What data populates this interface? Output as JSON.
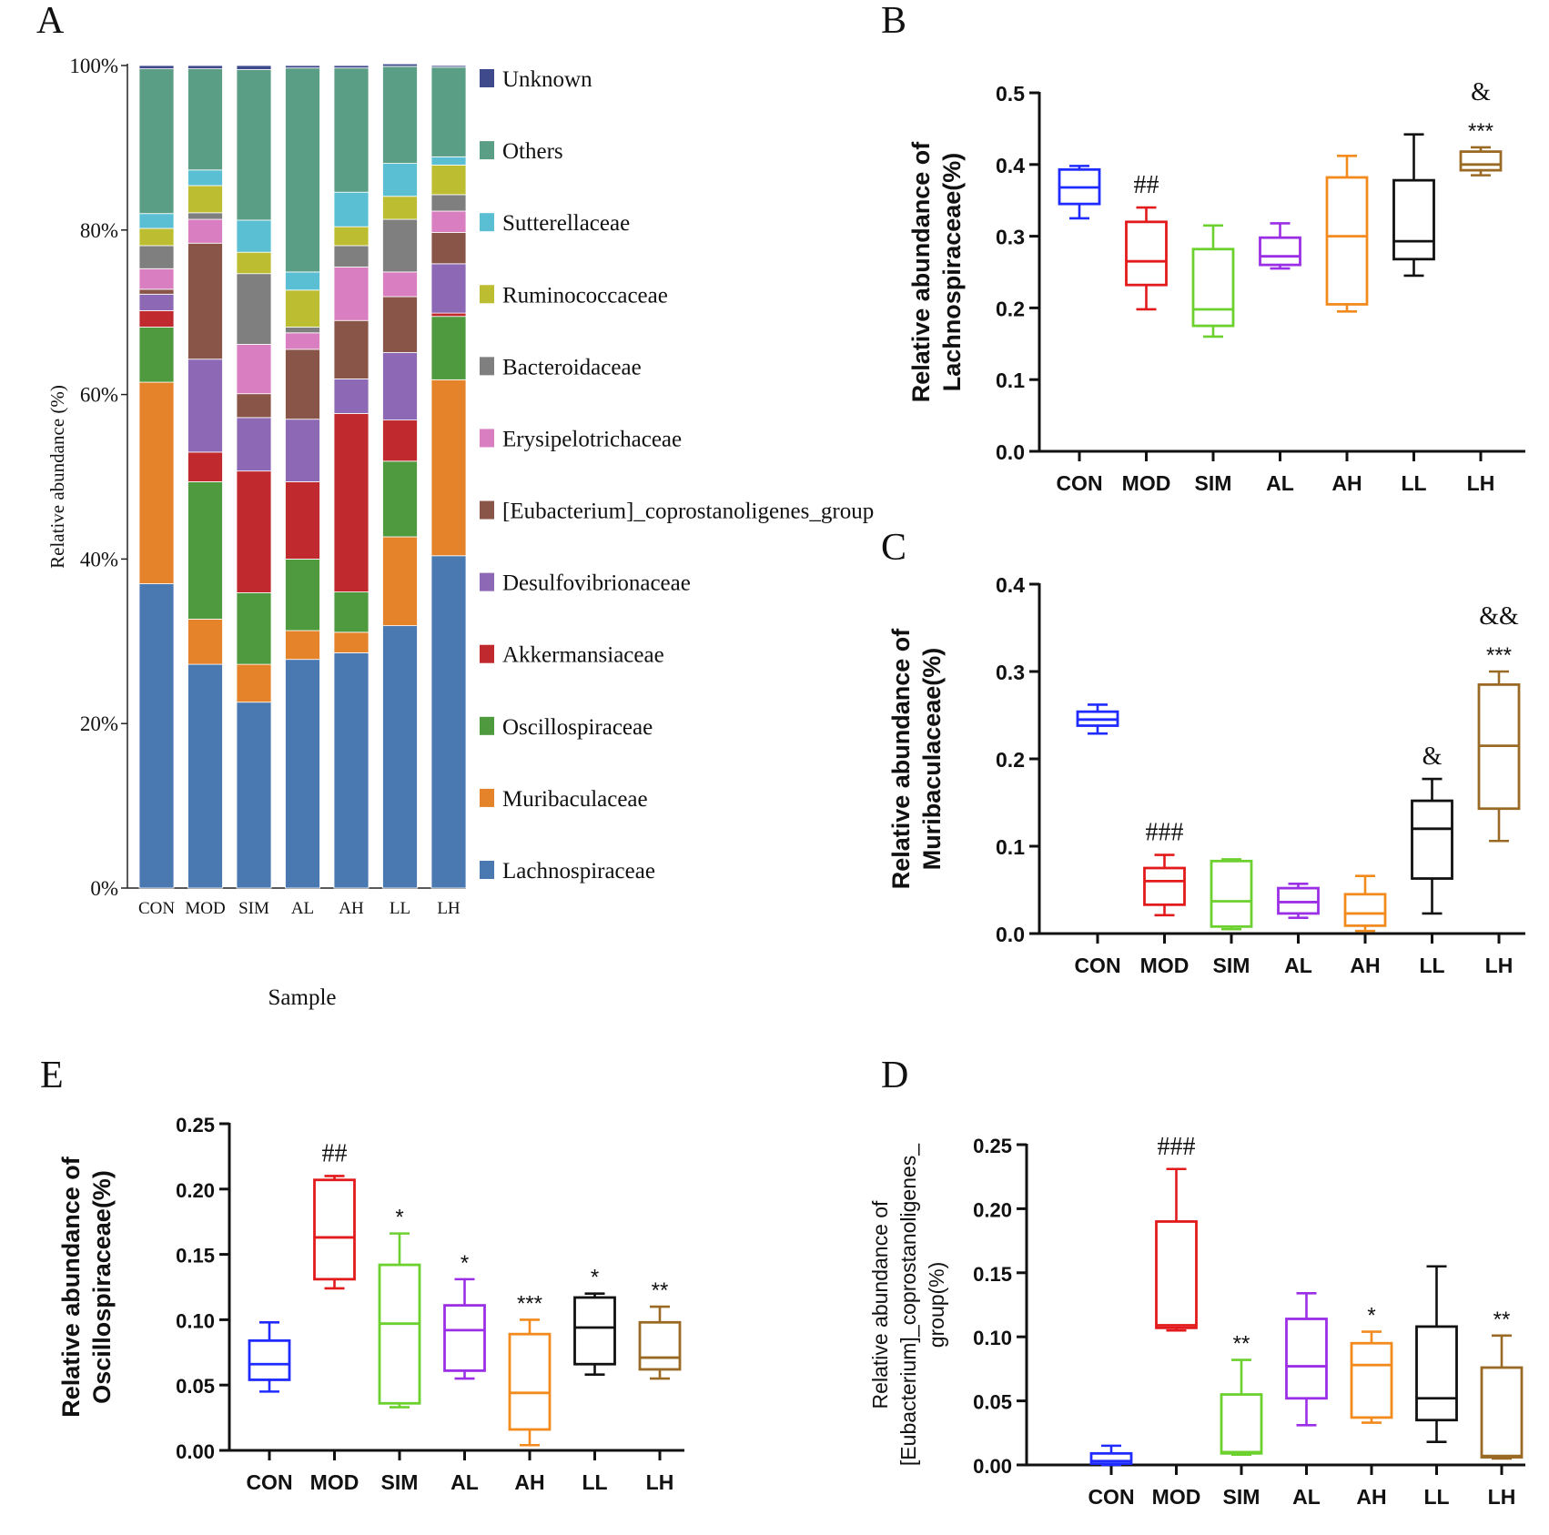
{
  "chart_data": [
    {
      "panel": "A",
      "type": "bar",
      "stacked": true,
      "title": "",
      "xlabel": "Sample",
      "ylabel": "Relative abundance (%)",
      "categories": [
        "CON",
        "MOD",
        "SIM",
        "AL",
        "AH",
        "LL",
        "LH"
      ],
      "yticks": [
        "0%",
        "20%",
        "40%",
        "60%",
        "80%",
        "100%"
      ],
      "ylim": [
        0,
        100
      ],
      "legend_position": "right",
      "series": [
        {
          "name": "Lachnospiraceae",
          "color": "#4a78b0",
          "values": [
            37.0,
            27.2,
            22.6,
            27.8,
            28.6,
            31.9,
            40.4
          ]
        },
        {
          "name": "Muribaculaceae",
          "color": "#e5832b",
          "values": [
            24.5,
            5.5,
            4.6,
            3.5,
            2.5,
            10.8,
            21.4
          ]
        },
        {
          "name": "Oscillospiraceae",
          "color": "#4f9a3f",
          "values": [
            6.7,
            16.7,
            8.7,
            8.7,
            4.9,
            9.2,
            7.7
          ]
        },
        {
          "name": "Akkermansiaceae",
          "color": "#c0292d",
          "values": [
            2.0,
            3.6,
            14.8,
            9.4,
            21.7,
            5.0,
            0.4
          ]
        },
        {
          "name": "Desulfovibrionaceae",
          "color": "#8d68b5",
          "values": [
            2.0,
            11.3,
            6.5,
            7.6,
            4.2,
            8.2,
            6.0
          ]
        },
        {
          "name": "[Eubacterium]_coprostanoligenes_group",
          "color": "#8a5549",
          "values": [
            0.6,
            14.1,
            2.9,
            8.5,
            7.1,
            6.8,
            3.8
          ]
        },
        {
          "name": "Erysipelotrichaceae",
          "color": "#d97ec0",
          "values": [
            2.5,
            2.9,
            6.0,
            2.0,
            6.5,
            3.0,
            2.6
          ]
        },
        {
          "name": "Bacteroidaceae",
          "color": "#7f7f7f",
          "values": [
            2.8,
            0.8,
            8.6,
            0.7,
            2.6,
            6.4,
            2.0
          ]
        },
        {
          "name": "Ruminococcaceae",
          "color": "#bcbd30",
          "values": [
            2.1,
            3.3,
            2.6,
            4.5,
            2.3,
            2.8,
            3.6
          ]
        },
        {
          "name": "Sutterellaceae",
          "color": "#5bbfd4",
          "values": [
            1.8,
            1.9,
            3.9,
            2.2,
            4.2,
            4.0,
            1.0
          ]
        },
        {
          "name": "Others",
          "color": "#5b9e86",
          "values": [
            17.6,
            12.3,
            18.3,
            24.8,
            15.1,
            11.8,
            10.9
          ]
        },
        {
          "name": "Unknown",
          "color": "#3f4a8c",
          "values": [
            0.4,
            0.4,
            0.5,
            0.3,
            0.3,
            0.3,
            0.2
          ]
        }
      ]
    },
    {
      "panel": "B",
      "type": "box",
      "ylabel_lines": [
        "Relative abundance of",
        "Lachnospiraceae(%)"
      ],
      "ylim": [
        0,
        0.5
      ],
      "yticks": [
        "0.0",
        "0.1",
        "0.2",
        "0.3",
        "0.4",
        "0.5"
      ],
      "categories": [
        "CON",
        "MOD",
        "SIM",
        "AL",
        "AH",
        "LL",
        "LH"
      ],
      "colors": [
        "#1f2bff",
        "#e31a1c",
        "#6cd02e",
        "#9b2fe6",
        "#f28a1e",
        "#111111",
        "#9a6a25"
      ],
      "boxes": [
        {
          "min": 0.325,
          "q1": 0.345,
          "median": 0.368,
          "q3": 0.393,
          "max": 0.398
        },
        {
          "min": 0.198,
          "q1": 0.232,
          "median": 0.265,
          "q3": 0.32,
          "max": 0.34
        },
        {
          "min": 0.16,
          "q1": 0.175,
          "median": 0.198,
          "q3": 0.282,
          "max": 0.315
        },
        {
          "min": 0.255,
          "q1": 0.26,
          "median": 0.272,
          "q3": 0.298,
          "max": 0.318
        },
        {
          "min": 0.195,
          "q1": 0.205,
          "median": 0.3,
          "q3": 0.382,
          "max": 0.412
        },
        {
          "min": 0.245,
          "q1": 0.268,
          "median": 0.293,
          "q3": 0.378,
          "max": 0.442
        },
        {
          "min": 0.385,
          "q1": 0.392,
          "median": 0.4,
          "q3": 0.418,
          "max": 0.424
        }
      ],
      "annotations": [
        {
          "group": 1,
          "lines": [
            "##"
          ]
        },
        {
          "group": 6,
          "lines": [
            "&",
            "***"
          ]
        }
      ]
    },
    {
      "panel": "C",
      "type": "box",
      "ylabel_lines": [
        "Relative abundance of",
        "Muribaculaceae(%)"
      ],
      "ylim": [
        0,
        0.4
      ],
      "yticks": [
        "0.0",
        "0.1",
        "0.2",
        "0.3",
        "0.4"
      ],
      "categories": [
        "CON",
        "MOD",
        "SIM",
        "AL",
        "AH",
        "LL",
        "LH"
      ],
      "colors": [
        "#1f2bff",
        "#e31a1c",
        "#6cd02e",
        "#9b2fe6",
        "#f28a1e",
        "#111111",
        "#9a6a25"
      ],
      "boxes": [
        {
          "min": 0.229,
          "q1": 0.238,
          "median": 0.245,
          "q3": 0.254,
          "max": 0.262
        },
        {
          "min": 0.021,
          "q1": 0.033,
          "median": 0.06,
          "q3": 0.075,
          "max": 0.09
        },
        {
          "min": 0.005,
          "q1": 0.008,
          "median": 0.037,
          "q3": 0.083,
          "max": 0.085
        },
        {
          "min": 0.018,
          "q1": 0.023,
          "median": 0.036,
          "q3": 0.052,
          "max": 0.057
        },
        {
          "min": 0.003,
          "q1": 0.009,
          "median": 0.023,
          "q3": 0.045,
          "max": 0.066
        },
        {
          "min": 0.023,
          "q1": 0.063,
          "median": 0.12,
          "q3": 0.152,
          "max": 0.177
        },
        {
          "min": 0.106,
          "q1": 0.143,
          "median": 0.215,
          "q3": 0.285,
          "max": 0.3
        }
      ],
      "annotations": [
        {
          "group": 1,
          "lines": [
            "###"
          ]
        },
        {
          "group": 5,
          "lines": [
            "&"
          ]
        },
        {
          "group": 6,
          "lines": [
            "&&",
            "***"
          ]
        }
      ]
    },
    {
      "panel": "E",
      "type": "box",
      "ylabel_lines": [
        "Relative abundance of",
        "Oscillospiraceae(%)"
      ],
      "ylim": [
        0,
        0.25
      ],
      "yticks": [
        "0.00",
        "0.05",
        "0.10",
        "0.15",
        "0.20",
        "0.25"
      ],
      "categories": [
        "CON",
        "MOD",
        "SIM",
        "AL",
        "AH",
        "LL",
        "LH"
      ],
      "colors": [
        "#1f2bff",
        "#e31a1c",
        "#6cd02e",
        "#9b2fe6",
        "#f28a1e",
        "#111111",
        "#9a6a25"
      ],
      "boxes": [
        {
          "min": 0.045,
          "q1": 0.054,
          "median": 0.066,
          "q3": 0.084,
          "max": 0.098
        },
        {
          "min": 0.124,
          "q1": 0.131,
          "median": 0.163,
          "q3": 0.207,
          "max": 0.21
        },
        {
          "min": 0.033,
          "q1": 0.036,
          "median": 0.097,
          "q3": 0.142,
          "max": 0.166
        },
        {
          "min": 0.055,
          "q1": 0.061,
          "median": 0.092,
          "q3": 0.111,
          "max": 0.131
        },
        {
          "min": 0.004,
          "q1": 0.016,
          "median": 0.044,
          "q3": 0.089,
          "max": 0.1
        },
        {
          "min": 0.058,
          "q1": 0.066,
          "median": 0.094,
          "q3": 0.117,
          "max": 0.12
        },
        {
          "min": 0.055,
          "q1": 0.062,
          "median": 0.071,
          "q3": 0.098,
          "max": 0.11
        }
      ],
      "annotations": [
        {
          "group": 1,
          "lines": [
            "##"
          ]
        },
        {
          "group": 2,
          "lines": [
            "*"
          ]
        },
        {
          "group": 3,
          "lines": [
            "*"
          ]
        },
        {
          "group": 4,
          "lines": [
            "***"
          ]
        },
        {
          "group": 5,
          "lines": [
            "*"
          ]
        },
        {
          "group": 6,
          "lines": [
            "**"
          ]
        }
      ]
    },
    {
      "panel": "D",
      "type": "box",
      "ylabel_lines": [
        "Relative abundance of",
        "[Eubacterium]_coprostanoligenes_",
        "group(%)"
      ],
      "ylim": [
        0,
        0.25
      ],
      "yticks": [
        "0.00",
        "0.05",
        "0.10",
        "0.15",
        "0.20",
        "0.25"
      ],
      "categories": [
        "CON",
        "MOD",
        "SIM",
        "AL",
        "AH",
        "LL",
        "LH"
      ],
      "colors": [
        "#1f2bff",
        "#e31a1c",
        "#6cd02e",
        "#9b2fe6",
        "#f28a1e",
        "#111111",
        "#9a6a25"
      ],
      "boxes": [
        {
          "min": 0.0,
          "q1": 0.001,
          "median": 0.003,
          "q3": 0.009,
          "max": 0.015
        },
        {
          "min": 0.105,
          "q1": 0.107,
          "median": 0.109,
          "q3": 0.19,
          "max": 0.231
        },
        {
          "min": 0.008,
          "q1": 0.009,
          "median": 0.01,
          "q3": 0.055,
          "max": 0.082
        },
        {
          "min": 0.031,
          "q1": 0.052,
          "median": 0.077,
          "q3": 0.114,
          "max": 0.134
        },
        {
          "min": 0.033,
          "q1": 0.037,
          "median": 0.078,
          "q3": 0.095,
          "max": 0.104
        },
        {
          "min": 0.018,
          "q1": 0.035,
          "median": 0.052,
          "q3": 0.108,
          "max": 0.155
        },
        {
          "min": 0.005,
          "q1": 0.006,
          "median": 0.007,
          "q3": 0.076,
          "max": 0.101
        }
      ],
      "annotations": [
        {
          "group": 1,
          "lines": [
            "###"
          ]
        },
        {
          "group": 2,
          "lines": [
            "**"
          ]
        },
        {
          "group": 4,
          "lines": [
            "*"
          ]
        },
        {
          "group": 6,
          "lines": [
            "**"
          ]
        }
      ]
    }
  ]
}
